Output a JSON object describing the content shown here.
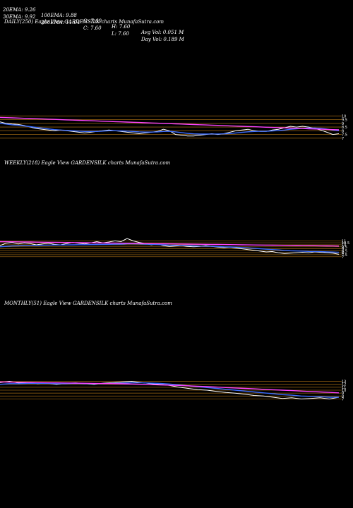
{
  "header": {
    "row1": [
      "20EMA: 9.26",
      "100EMA: 9.88",
      "O: 7.60",
      "H: 7.60",
      "Avg Vol: 0.051 M"
    ],
    "row2": [
      "30EMA: 9.92",
      "200EMA: 11.04",
      "C: 7.60",
      "L: 7.60",
      "Day Vol: 0.189 M"
    ]
  },
  "colors": {
    "background": "#000000",
    "price": "#ffffff",
    "ema_short": "#3b6cff",
    "ema_long": "#ff44ff",
    "bands": "#8a5a10"
  },
  "chart_data": [
    {
      "type": "line",
      "title": "DAILY(250) Eagle  View  GARDENSILK charts MunafaSutra.com",
      "ylim": [
        6.6,
        10.6
      ],
      "y_ticks": [
        "10",
        "9.5",
        "9",
        "8.5",
        "8",
        "7.5",
        "7"
      ],
      "series": [
        {
          "role": "price",
          "values": [
            9.2,
            9.0,
            8.9,
            8.85,
            8.7,
            8.5,
            8.3,
            8.2,
            8.1,
            8.0,
            8.1,
            8.0,
            7.9,
            7.8,
            7.7,
            7.8,
            7.9,
            8.0,
            8.1,
            8.0,
            7.9,
            7.8,
            7.7,
            7.6,
            7.7,
            7.8,
            7.9,
            8.2,
            8.0,
            7.5,
            7.4,
            7.3,
            7.3,
            7.4,
            7.5,
            7.6,
            7.5,
            7.6,
            7.8,
            8.0,
            8.1,
            8.2,
            8.0,
            7.9,
            7.9,
            8.1,
            8.2,
            8.4,
            8.6,
            8.5,
            8.6,
            8.5,
            8.3,
            8.1,
            7.8,
            7.5,
            7.6
          ]
        },
        {
          "role": "ema_short",
          "values": [
            9.0,
            8.9,
            8.8,
            8.75,
            8.65,
            8.55,
            8.45,
            8.35,
            8.25,
            8.15,
            8.1,
            8.05,
            8.0,
            7.95,
            7.9,
            7.9,
            7.9,
            7.95,
            8.0,
            8.0,
            7.98,
            7.95,
            7.9,
            7.85,
            7.82,
            7.82,
            7.85,
            7.9,
            7.92,
            7.85,
            7.75,
            7.65,
            7.58,
            7.55,
            7.55,
            7.56,
            7.56,
            7.58,
            7.62,
            7.7,
            7.78,
            7.86,
            7.9,
            7.92,
            7.93,
            7.97,
            8.02,
            8.1,
            8.2,
            8.26,
            8.32,
            8.36,
            8.36,
            8.32,
            8.22,
            8.1,
            8.0
          ]
        },
        {
          "role": "ema_long",
          "values": [
            9.8,
            9.77,
            9.74,
            9.71,
            9.68,
            9.65,
            9.62,
            9.59,
            9.56,
            9.53,
            9.5,
            9.47,
            9.44,
            9.41,
            9.38,
            9.35,
            9.32,
            9.29,
            9.26,
            9.23,
            9.2,
            9.17,
            9.14,
            9.11,
            9.08,
            9.05,
            9.02,
            8.99,
            8.96,
            8.93,
            8.9,
            8.87,
            8.84,
            8.81,
            8.78,
            8.75,
            8.72,
            8.69,
            8.66,
            8.63,
            8.6,
            8.57,
            8.54,
            8.51,
            8.48,
            8.45,
            8.42,
            8.39,
            8.36,
            8.33,
            8.3,
            8.27,
            8.24,
            8.21,
            8.18,
            8.15,
            8.12
          ]
        }
      ]
    },
    {
      "type": "line",
      "title": "WEEKLY(218) Eagle  View  GARDENSILK charts MunafaSutra.com",
      "ylim": [
        6.6,
        11.6
      ],
      "y_ticks": [
        "11",
        "10.5",
        "10",
        "9.5",
        "9",
        "8.5",
        "8",
        "7.5",
        "7"
      ],
      "series": [
        {
          "role": "price",
          "values": [
            9.8,
            10.4,
            10.6,
            10.2,
            10.5,
            10.3,
            10.0,
            10.2,
            10.4,
            10.1,
            10.0,
            10.3,
            10.6,
            10.4,
            10.2,
            10.5,
            10.8,
            10.5,
            10.7,
            11.0,
            10.8,
            11.6,
            11.0,
            10.6,
            10.3,
            10.0,
            10.2,
            9.8,
            9.6,
            9.7,
            9.8,
            9.6,
            9.5,
            9.6,
            9.8,
            9.6,
            9.4,
            9.3,
            9.4,
            9.2,
            9.0,
            8.8,
            8.6,
            8.4,
            8.2,
            8.3,
            8.0,
            7.8,
            7.9,
            8.0,
            8.1,
            8.0,
            8.2,
            8.1,
            8.0,
            7.9,
            7.6
          ]
        },
        {
          "role": "ema_short",
          "values": [
            9.5,
            9.6,
            9.7,
            9.75,
            9.8,
            9.85,
            9.85,
            9.9,
            9.92,
            9.95,
            9.95,
            9.98,
            10.0,
            10.02,
            10.03,
            10.05,
            10.08,
            10.1,
            10.12,
            10.15,
            10.16,
            10.25,
            10.25,
            10.22,
            10.18,
            10.12,
            10.08,
            10.0,
            9.93,
            9.88,
            9.84,
            9.78,
            9.72,
            9.68,
            9.66,
            9.62,
            9.56,
            9.5,
            9.46,
            9.4,
            9.32,
            9.22,
            9.12,
            9.0,
            8.88,
            8.8,
            8.7,
            8.58,
            8.5,
            8.44,
            8.4,
            8.34,
            8.3,
            8.27,
            8.22,
            8.18,
            8.1
          ]
        },
        {
          "role": "ema_long",
          "values": [
            10.8,
            10.78,
            10.76,
            10.74,
            10.72,
            10.7,
            10.68,
            10.66,
            10.64,
            10.62,
            10.6,
            10.58,
            10.56,
            10.54,
            10.52,
            10.5,
            10.48,
            10.46,
            10.44,
            10.42,
            10.4,
            10.38,
            10.36,
            10.34,
            10.32,
            10.3,
            10.28,
            10.26,
            10.24,
            10.22,
            10.2,
            10.18,
            10.16,
            10.14,
            10.12,
            10.1,
            10.08,
            10.06,
            10.04,
            10.02,
            10.0,
            9.98,
            9.96,
            9.94,
            9.92,
            9.9,
            9.88,
            9.86,
            9.84,
            9.82,
            9.8,
            9.78,
            9.76,
            9.74,
            9.72,
            9.7,
            9.68
          ]
        }
      ]
    },
    {
      "type": "line",
      "title": "MONTHLY(51) Eagle  View  GARDENSILK charts MunafaSutra.com",
      "ylim": [
        6.4,
        13.6
      ],
      "y_ticks": [
        "13",
        "12",
        "11",
        "10",
        "9",
        "8",
        "7"
      ],
      "series": [
        {
          "role": "price",
          "values": [
            12.6,
            13.0,
            12.4,
            12.6,
            12.2,
            12.4,
            12.0,
            12.3,
            12.5,
            12.2,
            12.0,
            12.4,
            12.6,
            12.8,
            13.0,
            12.6,
            12.2,
            12.0,
            11.6,
            11.0,
            10.6,
            10.2,
            10.0,
            9.6,
            9.2,
            9.0,
            8.6,
            8.2,
            8.0,
            7.6,
            7.2,
            7.4,
            7.0,
            7.2,
            7.4,
            7.0,
            7.6
          ]
        },
        {
          "role": "ema_short",
          "values": [
            12.0,
            12.2,
            12.2,
            12.3,
            12.3,
            12.3,
            12.2,
            12.2,
            12.3,
            12.2,
            12.2,
            12.2,
            12.3,
            12.4,
            12.5,
            12.5,
            12.4,
            12.3,
            12.1,
            11.8,
            11.5,
            11.2,
            10.9,
            10.6,
            10.3,
            10.0,
            9.7,
            9.4,
            9.1,
            8.8,
            8.5,
            8.3,
            8.0,
            7.9,
            7.8,
            7.6,
            7.6
          ]
        },
        {
          "role": "ema_long",
          "values": [
            12.8,
            12.75,
            12.7,
            12.65,
            12.6,
            12.55,
            12.5,
            12.45,
            12.4,
            12.35,
            12.3,
            12.25,
            12.2,
            12.15,
            12.1,
            12.0,
            11.9,
            11.8,
            11.7,
            11.6,
            11.5,
            11.35,
            11.2,
            11.05,
            10.9,
            10.75,
            10.6,
            10.45,
            10.3,
            10.15,
            10.0,
            9.85,
            9.7,
            9.55,
            9.4,
            9.25,
            9.1
          ]
        }
      ]
    }
  ]
}
